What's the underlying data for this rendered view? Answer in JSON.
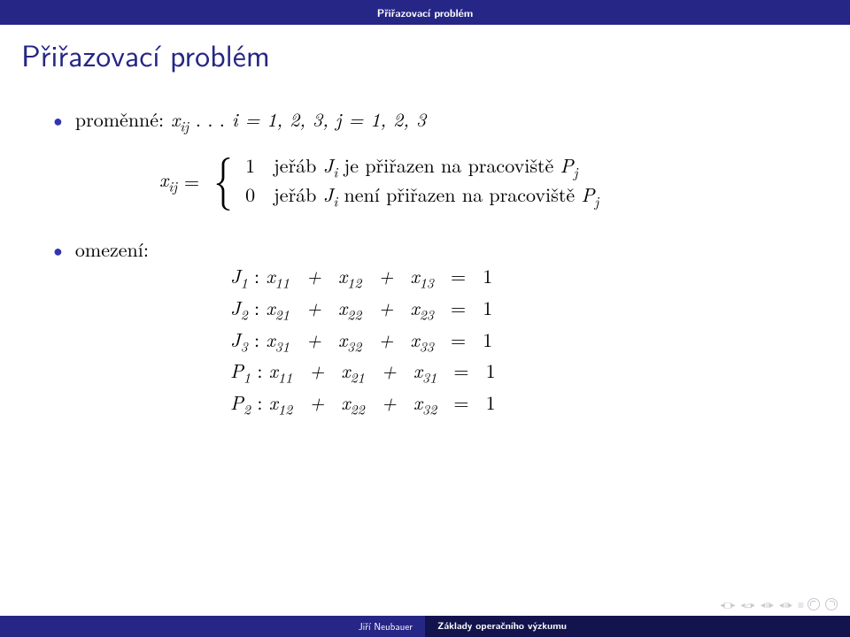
{
  "colors": {
    "header_bg": "#262686",
    "title_color": "#262686",
    "bullet_color": "#3333b3",
    "footer_left_bg": "#262686",
    "footer_right_bg": "#13134d",
    "nav_color": "#c8c8cf",
    "text_color": "#000000",
    "page_bg": "#ffffff"
  },
  "header": {
    "section": "Přiřazovací problém"
  },
  "title": "Přiřazovací problém",
  "line1": {
    "label": "proměnné:",
    "var": "x",
    "sub": "ij",
    "dots": ". . .",
    "range": "i = 1, 2, 3,  j = 1, 2, 3"
  },
  "cases": {
    "lhs_var": "x",
    "lhs_sub": "ij",
    "eq": "=",
    "row1_num": "1",
    "row1_text_a": "jeřáb ",
    "row1_J": "J",
    "row1_i": "i",
    "row1_text_b": " je přiřazen na pracoviště ",
    "row1_P": "P",
    "row1_j": "j",
    "row2_num": "0",
    "row2_text_a": "jeřáb ",
    "row2_J": "J",
    "row2_i": "i",
    "row2_text_b": " není přiřazen na pracoviště ",
    "row2_P": "P",
    "row2_j": "j"
  },
  "omezeni_label": "omezení:",
  "equations": {
    "e1": {
      "lhs": "J",
      "lsub": "1",
      "body": "x₁₁  +  x₁₂  +  x₁₃  =  1"
    },
    "e2": {
      "lhs": "J",
      "lsub": "2",
      "body": "x₂₁  +  x₂₂  +  x₂₃  =  1"
    },
    "e3": {
      "lhs": "J",
      "lsub": "3",
      "body": "x₃₁  +  x₃₂  +  x₃₃  =  1"
    },
    "e4": {
      "lhs": "P",
      "lsub": "1",
      "body": "x₁₁  +  x₂₁  +  x₃₁  =  1"
    },
    "e5": {
      "lhs": "P",
      "lsub": "2",
      "body": "x₁₂  +  x₂₂  +  x₃₂  =  1"
    }
  },
  "footer": {
    "author": "Jiří Neubauer",
    "title": "Základy operačního výzkumu"
  }
}
